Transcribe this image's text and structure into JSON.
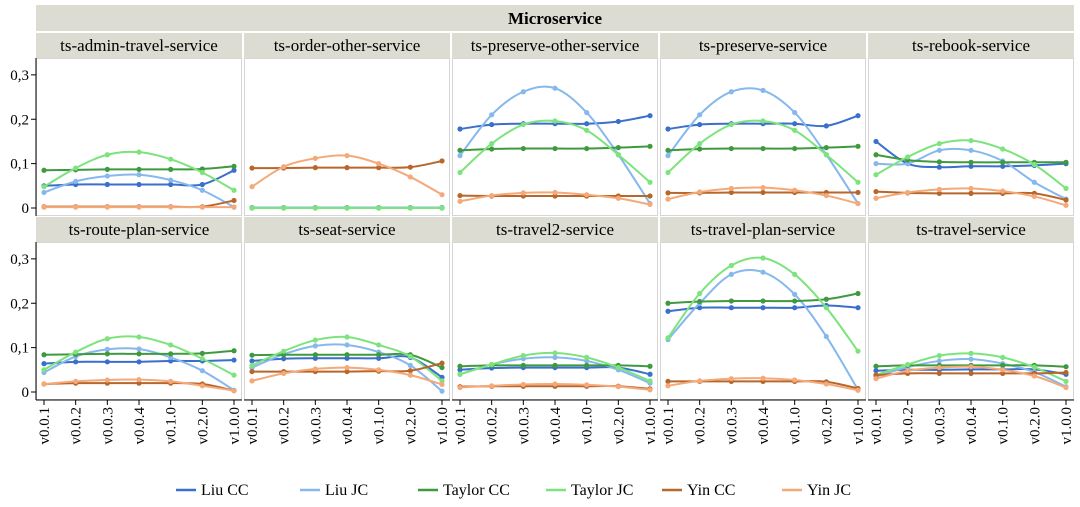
{
  "chart_data": {
    "type": "line",
    "title": "Microservice",
    "x": [
      "v0.0.1",
      "v0.0.2",
      "v0.0.3",
      "v0.0.4",
      "v0.1.0",
      "v0.2.0",
      "v1.0.0"
    ],
    "ylim": [
      0,
      0.32
    ],
    "yticks": [
      "0",
      "0,1",
      "0,2",
      "0,3"
    ],
    "grid": false,
    "legend_position": "bottom",
    "series_styles": [
      {
        "name": "Liu CC",
        "color": "#3a6fcc"
      },
      {
        "name": "Liu JC",
        "color": "#86b8ee"
      },
      {
        "name": "Taylor CC",
        "color": "#3f9a3f"
      },
      {
        "name": "Taylor JC",
        "color": "#7de37d"
      },
      {
        "name": "Yin CC",
        "color": "#b8662a"
      },
      {
        "name": "Yin JC",
        "color": "#f5a878"
      }
    ],
    "panels": [
      {
        "title": "ts-admin-travel-service",
        "series": [
          {
            "name": "Liu CC",
            "values": [
              0.05,
              0.053,
              0.053,
              0.053,
              0.053,
              0.053,
              0.085
            ]
          },
          {
            "name": "Liu JC",
            "values": [
              0.035,
              0.06,
              0.072,
              0.075,
              0.063,
              0.04,
              0.002
            ]
          },
          {
            "name": "Taylor CC",
            "values": [
              0.085,
              0.086,
              0.087,
              0.087,
              0.087,
              0.088,
              0.094
            ]
          },
          {
            "name": "Taylor JC",
            "values": [
              0.048,
              0.09,
              0.12,
              0.126,
              0.11,
              0.08,
              0.04
            ]
          },
          {
            "name": "Yin CC",
            "values": [
              0.003,
              0.003,
              0.003,
              0.003,
              0.003,
              0.003,
              0.017
            ]
          },
          {
            "name": "Yin JC",
            "values": [
              0.002,
              0.002,
              0.002,
              0.002,
              0.002,
              0.002,
              0.002
            ]
          }
        ]
      },
      {
        "title": "ts-order-other-service",
        "series": [
          {
            "name": "Liu CC",
            "values": [
              0.001,
              0.001,
              0.001,
              0.001,
              0.001,
              0.001,
              0.001
            ]
          },
          {
            "name": "Liu JC",
            "values": [
              0.001,
              0.001,
              0.001,
              0.001,
              0.001,
              0.001,
              0.001
            ]
          },
          {
            "name": "Taylor CC",
            "values": [
              0.0,
              0.0,
              0.0,
              0.0,
              0.0,
              0.0,
              0.0
            ]
          },
          {
            "name": "Taylor JC",
            "values": [
              0.0,
              0.0,
              0.0,
              0.0,
              0.0,
              0.0,
              0.0
            ]
          },
          {
            "name": "Yin CC",
            "values": [
              0.09,
              0.09,
              0.091,
              0.091,
              0.091,
              0.092,
              0.106
            ]
          },
          {
            "name": "Yin JC",
            "values": [
              0.048,
              0.093,
              0.112,
              0.118,
              0.1,
              0.07,
              0.03
            ]
          }
        ]
      },
      {
        "title": "ts-preserve-other-service",
        "series": [
          {
            "name": "Liu CC",
            "values": [
              0.178,
              0.188,
              0.19,
              0.19,
              0.19,
              0.195,
              0.208
            ]
          },
          {
            "name": "Liu JC",
            "values": [
              0.118,
              0.21,
              0.262,
              0.27,
              0.215,
              0.12,
              0.01
            ]
          },
          {
            "name": "Taylor CC",
            "values": [
              0.13,
              0.133,
              0.134,
              0.134,
              0.134,
              0.136,
              0.139
            ]
          },
          {
            "name": "Taylor JC",
            "values": [
              0.08,
              0.145,
              0.188,
              0.196,
              0.175,
              0.12,
              0.058
            ]
          },
          {
            "name": "Yin CC",
            "values": [
              0.028,
              0.027,
              0.027,
              0.027,
              0.027,
              0.027,
              0.027
            ]
          },
          {
            "name": "Yin JC",
            "values": [
              0.015,
              0.028,
              0.034,
              0.035,
              0.03,
              0.022,
              0.008
            ]
          }
        ]
      },
      {
        "title": "ts-preserve-service",
        "series": [
          {
            "name": "Liu CC",
            "values": [
              0.178,
              0.188,
              0.19,
              0.19,
              0.19,
              0.185,
              0.208
            ]
          },
          {
            "name": "Liu JC",
            "values": [
              0.118,
              0.21,
              0.262,
              0.265,
              0.215,
              0.12,
              0.01
            ]
          },
          {
            "name": "Taylor CC",
            "values": [
              0.13,
              0.133,
              0.134,
              0.134,
              0.134,
              0.136,
              0.139
            ]
          },
          {
            "name": "Taylor JC",
            "values": [
              0.08,
              0.145,
              0.188,
              0.196,
              0.175,
              0.12,
              0.058
            ]
          },
          {
            "name": "Yin CC",
            "values": [
              0.034,
              0.034,
              0.035,
              0.035,
              0.035,
              0.035,
              0.035
            ]
          },
          {
            "name": "Yin JC",
            "values": [
              0.02,
              0.036,
              0.044,
              0.046,
              0.04,
              0.028,
              0.01
            ]
          }
        ]
      },
      {
        "title": "ts-rebook-service",
        "series": [
          {
            "name": "Liu CC",
            "values": [
              0.15,
              0.1,
              0.092,
              0.094,
              0.094,
              0.096,
              0.1
            ]
          },
          {
            "name": "Liu JC",
            "values": [
              0.1,
              0.1,
              0.13,
              0.13,
              0.106,
              0.058,
              0.02
            ]
          },
          {
            "name": "Taylor CC",
            "values": [
              0.12,
              0.108,
              0.104,
              0.103,
              0.103,
              0.103,
              0.103
            ]
          },
          {
            "name": "Taylor JC",
            "values": [
              0.075,
              0.115,
              0.145,
              0.152,
              0.133,
              0.098,
              0.044
            ]
          },
          {
            "name": "Yin CC",
            "values": [
              0.037,
              0.034,
              0.033,
              0.033,
              0.033,
              0.033,
              0.018
            ]
          },
          {
            "name": "Yin JC",
            "values": [
              0.022,
              0.035,
              0.042,
              0.044,
              0.038,
              0.026,
              0.006
            ]
          }
        ]
      },
      {
        "title": "ts-route-plan-service",
        "series": [
          {
            "name": "Liu CC",
            "values": [
              0.064,
              0.068,
              0.068,
              0.068,
              0.07,
              0.07,
              0.072
            ]
          },
          {
            "name": "Liu JC",
            "values": [
              0.044,
              0.08,
              0.096,
              0.097,
              0.078,
              0.048,
              0.004
            ]
          },
          {
            "name": "Taylor CC",
            "values": [
              0.084,
              0.085,
              0.086,
              0.086,
              0.086,
              0.087,
              0.093
            ]
          },
          {
            "name": "Taylor JC",
            "values": [
              0.05,
              0.09,
              0.12,
              0.124,
              0.106,
              0.075,
              0.038
            ]
          },
          {
            "name": "Yin CC",
            "values": [
              0.018,
              0.02,
              0.02,
              0.02,
              0.02,
              0.018,
              0.003
            ]
          },
          {
            "name": "Yin JC",
            "values": [
              0.018,
              0.024,
              0.027,
              0.028,
              0.024,
              0.014,
              0.003
            ]
          }
        ]
      },
      {
        "title": "ts-seat-service",
        "series": [
          {
            "name": "Liu CC",
            "values": [
              0.07,
              0.075,
              0.076,
              0.076,
              0.076,
              0.078,
              0.033
            ]
          },
          {
            "name": "Liu JC",
            "values": [
              0.055,
              0.085,
              0.104,
              0.106,
              0.09,
              0.06,
              0.002
            ]
          },
          {
            "name": "Taylor CC",
            "values": [
              0.083,
              0.084,
              0.084,
              0.084,
              0.084,
              0.084,
              0.055
            ]
          },
          {
            "name": "Taylor JC",
            "values": [
              0.06,
              0.092,
              0.117,
              0.124,
              0.106,
              0.08,
              0.025
            ]
          },
          {
            "name": "Yin CC",
            "values": [
              0.046,
              0.046,
              0.046,
              0.046,
              0.047,
              0.048,
              0.065
            ]
          },
          {
            "name": "Yin JC",
            "values": [
              0.025,
              0.042,
              0.052,
              0.055,
              0.05,
              0.038,
              0.017
            ]
          }
        ]
      },
      {
        "title": "ts-travel2-service",
        "series": [
          {
            "name": "Liu CC",
            "values": [
              0.05,
              0.054,
              0.055,
              0.055,
              0.055,
              0.055,
              0.04
            ]
          },
          {
            "name": "Liu JC",
            "values": [
              0.04,
              0.062,
              0.075,
              0.078,
              0.07,
              0.05,
              0.02
            ]
          },
          {
            "name": "Taylor CC",
            "values": [
              0.058,
              0.06,
              0.06,
              0.06,
              0.06,
              0.06,
              0.058
            ]
          },
          {
            "name": "Taylor JC",
            "values": [
              0.04,
              0.062,
              0.082,
              0.088,
              0.078,
              0.055,
              0.025
            ]
          },
          {
            "name": "Yin CC",
            "values": [
              0.012,
              0.013,
              0.013,
              0.013,
              0.013,
              0.013,
              0.007
            ]
          },
          {
            "name": "Yin JC",
            "values": [
              0.01,
              0.014,
              0.017,
              0.018,
              0.016,
              0.012,
              0.005
            ]
          }
        ]
      },
      {
        "title": "ts-travel-plan-service",
        "series": [
          {
            "name": "Liu CC",
            "values": [
              0.182,
              0.19,
              0.19,
              0.19,
              0.19,
              0.195,
              0.19
            ]
          },
          {
            "name": "Liu JC",
            "values": [
              0.118,
              0.2,
              0.265,
              0.27,
              0.22,
              0.125,
              0.005
            ]
          },
          {
            "name": "Taylor CC",
            "values": [
              0.2,
              0.204,
              0.205,
              0.205,
              0.205,
              0.209,
              0.222
            ]
          },
          {
            "name": "Taylor JC",
            "values": [
              0.122,
              0.222,
              0.285,
              0.302,
              0.265,
              0.19,
              0.092
            ]
          },
          {
            "name": "Yin CC",
            "values": [
              0.024,
              0.024,
              0.024,
              0.024,
              0.024,
              0.023,
              0.008
            ]
          },
          {
            "name": "Yin JC",
            "values": [
              0.014,
              0.025,
              0.03,
              0.031,
              0.027,
              0.018,
              0.004
            ]
          }
        ]
      },
      {
        "title": "ts-travel-service",
        "series": [
          {
            "name": "Liu CC",
            "values": [
              0.048,
              0.05,
              0.05,
              0.051,
              0.051,
              0.051,
              0.04
            ]
          },
          {
            "name": "Liu JC",
            "values": [
              0.035,
              0.056,
              0.07,
              0.074,
              0.064,
              0.045,
              0.012
            ]
          },
          {
            "name": "Taylor CC",
            "values": [
              0.058,
              0.06,
              0.06,
              0.06,
              0.06,
              0.06,
              0.057
            ]
          },
          {
            "name": "Taylor JC",
            "values": [
              0.038,
              0.062,
              0.082,
              0.087,
              0.078,
              0.056,
              0.024
            ]
          },
          {
            "name": "Yin CC",
            "values": [
              0.038,
              0.042,
              0.042,
              0.042,
              0.042,
              0.042,
              0.044
            ]
          },
          {
            "name": "Yin JC",
            "values": [
              0.03,
              0.048,
              0.055,
              0.057,
              0.05,
              0.036,
              0.01
            ]
          }
        ]
      }
    ]
  }
}
